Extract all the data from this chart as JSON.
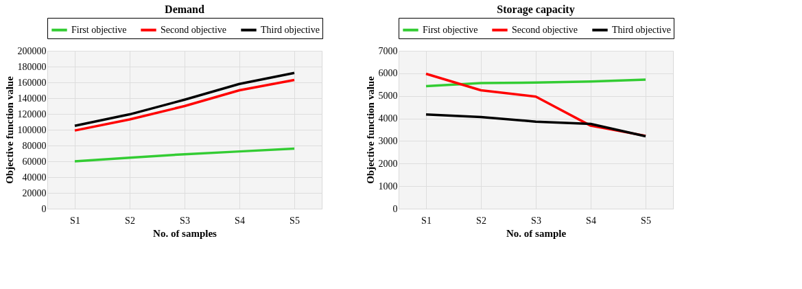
{
  "chart_data": [
    {
      "type": "line",
      "title": "Demand",
      "xlabel": "No. of samples",
      "ylabel": "Objective function value",
      "categories": [
        "S1",
        "S2",
        "S3",
        "S4",
        "S5"
      ],
      "ylim": [
        0,
        200000
      ],
      "yticks": [
        0,
        20000,
        40000,
        60000,
        80000,
        100000,
        120000,
        140000,
        160000,
        180000,
        200000
      ],
      "grid": true,
      "legend": "top",
      "series": [
        {
          "name": "First objective",
          "color": "#33cc33",
          "values": [
            60000,
            64500,
            69000,
            72500,
            76000
          ]
        },
        {
          "name": "Second objective",
          "color": "#ff0000",
          "values": [
            99000,
            113000,
            130000,
            150000,
            163000
          ]
        },
        {
          "name": "Third objective",
          "color": "#000000",
          "values": [
            105000,
            119500,
            138000,
            158000,
            172000
          ]
        }
      ]
    },
    {
      "type": "line",
      "title": "Storage capacity",
      "xlabel": "No. of sample",
      "ylabel": "Objective function value",
      "categories": [
        "S1",
        "S2",
        "S3",
        "S4",
        "S5"
      ],
      "ylim": [
        0,
        7000
      ],
      "yticks": [
        0,
        1000,
        2000,
        3000,
        4000,
        5000,
        6000,
        7000
      ],
      "grid": true,
      "legend": "top",
      "series": [
        {
          "name": "First objective",
          "color": "#33cc33",
          "values": [
            5430,
            5570,
            5590,
            5640,
            5720
          ]
        },
        {
          "name": "Second objective",
          "color": "#ff0000",
          "values": [
            5980,
            5250,
            4970,
            3680,
            3230
          ]
        },
        {
          "name": "Third objective",
          "color": "#000000",
          "values": [
            4180,
            4060,
            3860,
            3760,
            3210
          ]
        }
      ]
    }
  ]
}
